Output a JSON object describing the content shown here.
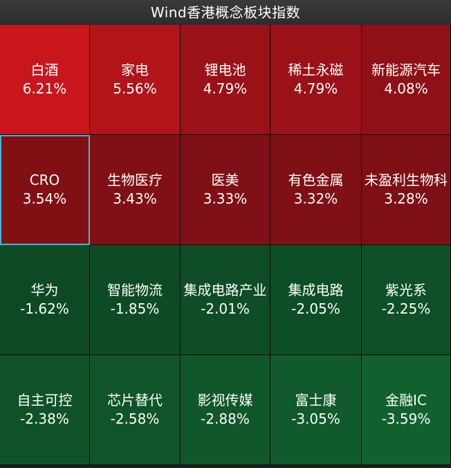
{
  "title": "Wind香港概念板块指数",
  "tiles": [
    {
      "name": "白酒",
      "change": "6.21%",
      "color": "#c9161c"
    },
    {
      "name": "家电",
      "change": "5.56%",
      "color": "#b21419"
    },
    {
      "name": "锂电池",
      "change": "4.79%",
      "color": "#9a1117"
    },
    {
      "name": "稀土永磁",
      "change": "4.79%",
      "color": "#9a1117"
    },
    {
      "name": "新能源汽车",
      "change": "4.08%",
      "color": "#8f1015"
    },
    {
      "name": "CRO",
      "change": "3.54%",
      "color": "#811015"
    },
    {
      "name": "生物医疗",
      "change": "3.43%",
      "color": "#801015"
    },
    {
      "name": "医美",
      "change": "3.33%",
      "color": "#7f1015"
    },
    {
      "name": "有色金属",
      "change": "3.32%",
      "color": "#7f1015"
    },
    {
      "name": "未盈利生物科",
      "change": "3.28%",
      "color": "#7e1015"
    },
    {
      "name": "华为",
      "change": "-1.62%",
      "color": "#0d4a24"
    },
    {
      "name": "智能物流",
      "change": "-1.85%",
      "color": "#0d4b25"
    },
    {
      "name": "集成电路产业",
      "change": "-2.01%",
      "color": "#0e4d26"
    },
    {
      "name": "集成电路",
      "change": "-2.05%",
      "color": "#0e4e26"
    },
    {
      "name": "紫光系",
      "change": "-2.25%",
      "color": "#0e5027"
    },
    {
      "name": "自主可控",
      "change": "-2.38%",
      "color": "#0f5228"
    },
    {
      "name": "芯片替代",
      "change": "-2.58%",
      "color": "#0f5529"
    },
    {
      "name": "影视传媒",
      "change": "-2.88%",
      "color": "#10582a"
    },
    {
      "name": "富士康",
      "change": "-3.05%",
      "color": "#105a2b"
    },
    {
      "name": "金融IC",
      "change": "-3.59%",
      "color": "#11612e"
    }
  ]
}
